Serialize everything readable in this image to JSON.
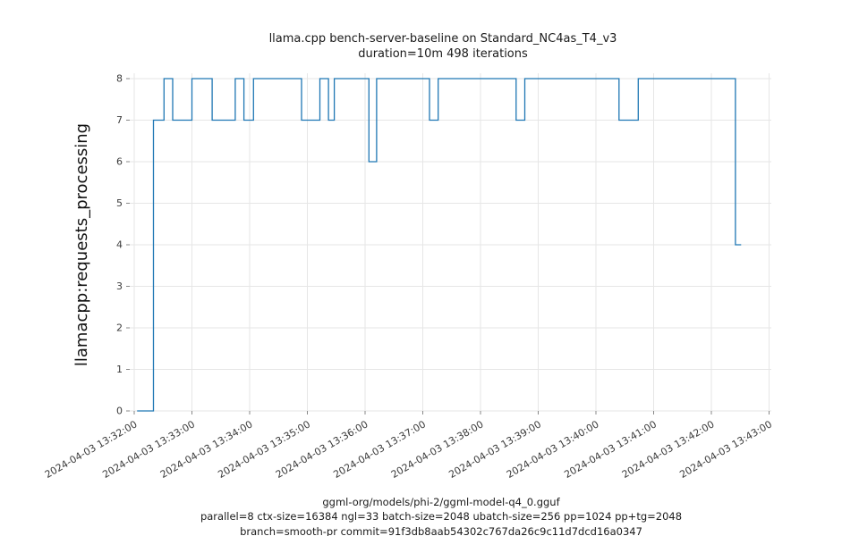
{
  "chart": {
    "title_line1": "llama.cpp bench-server-baseline on Standard_NC4as_T4_v3",
    "title_line2": "duration=10m 498 iterations",
    "ylabel": "llamacpp:requests_processing",
    "caption_line1": "ggml-org/models/phi-2/ggml-model-q4_0.gguf",
    "caption_line2": "parallel=8 ctx-size=16384 ngl=33 batch-size=2048 ubatch-size=256 pp=1024 pp+tg=2048",
    "caption_line3": "branch=smooth-pr commit=91f3db8aab54302c767da26c9c11d7dcd16a0347",
    "line_color": "#1f77b4",
    "grid_color": "#e6e6e6",
    "tick_color": "#888888"
  },
  "chart_data": {
    "type": "line",
    "step": true,
    "title": "llama.cpp bench-server-baseline on Standard_NC4as_T4_v3 duration=10m 498 iterations",
    "xlabel": "ggml-org/models/phi-2/ggml-model-q4_0.gguf parallel=8 ctx-size=16384 ngl=33 batch-size=2048 ubatch-size=256 pp=1024 pp+tg=2048 branch=smooth-pr commit=91f3db8aab54302c767da26c9c11d7dcd16a0347",
    "ylabel": "llamacpp:requests_processing",
    "ylim": [
      -0.4,
      8.4
    ],
    "y_ticks": [
      0,
      1,
      2,
      3,
      4,
      5,
      6,
      7,
      8
    ],
    "x_range_seconds": [
      0,
      660
    ],
    "x_tick_seconds": [
      0,
      60,
      120,
      180,
      240,
      300,
      360,
      420,
      480,
      540,
      600,
      660
    ],
    "x_tick_labels": [
      "2024-04-03 13:32:00",
      "2024-04-03 13:33:00",
      "2024-04-03 13:34:00",
      "2024-04-03 13:35:00",
      "2024-04-03 13:36:00",
      "2024-04-03 13:37:00",
      "2024-04-03 13:38:00",
      "2024-04-03 13:39:00",
      "2024-04-03 13:40:00",
      "2024-04-03 13:41:00",
      "2024-04-03 13:42:00",
      "2024-04-03 13:43:00"
    ],
    "grid": true,
    "legend": false,
    "segments_format": "[start_seconds, end_seconds, value] offsets relative to 2024-04-03 13:32:00",
    "series": [
      {
        "name": "llamacpp:requests_processing",
        "color": "#1f77b4",
        "segments": [
          [
            3,
            20,
            0
          ],
          [
            20,
            31,
            7
          ],
          [
            31,
            40,
            8
          ],
          [
            40,
            60,
            7
          ],
          [
            60,
            81,
            8
          ],
          [
            81,
            105,
            7
          ],
          [
            105,
            114,
            8
          ],
          [
            114,
            124,
            7
          ],
          [
            124,
            174,
            8
          ],
          [
            174,
            193,
            7
          ],
          [
            193,
            202,
            8
          ],
          [
            202,
            208,
            7
          ],
          [
            208,
            244,
            8
          ],
          [
            244,
            252,
            6
          ],
          [
            252,
            307,
            8
          ],
          [
            307,
            316,
            7
          ],
          [
            316,
            397,
            8
          ],
          [
            397,
            406,
            7
          ],
          [
            406,
            504,
            8
          ],
          [
            504,
            524,
            7
          ],
          [
            524,
            625,
            8
          ],
          [
            625,
            631,
            4
          ]
        ]
      }
    ]
  }
}
